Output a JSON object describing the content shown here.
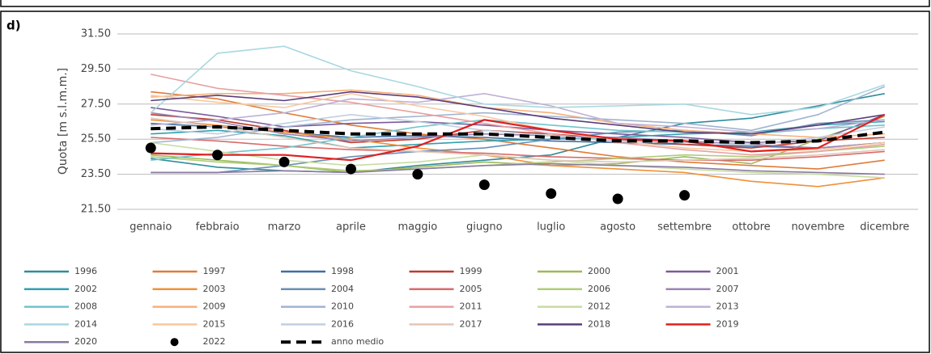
{
  "panel_label": "d)",
  "chart_data": {
    "type": "line",
    "ylabel": "Quota [m s.l.m.m.]",
    "categories": [
      "gennaio",
      "febbraio",
      "marzo",
      "aprile",
      "maggio",
      "giugno",
      "luglio",
      "agosto",
      "settembre",
      "ottobre",
      "novembre",
      "dicembre"
    ],
    "ylim": [
      21.5,
      31.5
    ],
    "yticks": [
      {
        "value": 21.5,
        "label": "21.50"
      },
      {
        "value": 23.5,
        "label": "23.50"
      },
      {
        "value": 25.5,
        "label": "25.50"
      },
      {
        "value": 27.5,
        "label": "27.50"
      },
      {
        "value": 29.5,
        "label": "29.50"
      },
      {
        "value": 31.5,
        "label": "31.50"
      }
    ],
    "grid": true,
    "series": [
      {
        "name": "1996",
        "color": "#2f8c9c",
        "style": "line",
        "values": [
          24.4,
          23.9,
          23.7,
          23.6,
          24.0,
          24.3,
          24.6,
          25.6,
          26.4,
          26.7,
          27.4,
          28.1
        ]
      },
      {
        "name": "1997",
        "color": "#e07b39",
        "style": "line",
        "values": [
          28.2,
          27.8,
          27.0,
          26.3,
          25.8,
          25.5,
          25.0,
          24.5,
          24.2,
          24.0,
          23.8,
          24.3
        ]
      },
      {
        "name": "1998",
        "color": "#3d6fa0",
        "style": "line",
        "values": [
          26.4,
          26.2,
          25.9,
          25.6,
          25.7,
          25.6,
          25.4,
          25.3,
          25.2,
          25.1,
          25.0,
          25.3
        ]
      },
      {
        "name": "1999",
        "color": "#c0392b",
        "style": "line",
        "values": [
          26.9,
          26.6,
          26.0,
          25.3,
          25.5,
          26.0,
          25.8,
          25.5,
          25.2,
          25.0,
          25.4,
          25.6
        ]
      },
      {
        "name": "2000",
        "color": "#9bbb59",
        "style": "line",
        "values": [
          24.6,
          24.3,
          24.0,
          23.6,
          23.9,
          24.2,
          24.0,
          24.1,
          24.5,
          24.1,
          25.5,
          26.8
        ]
      },
      {
        "name": "2001",
        "color": "#7b5a9a",
        "style": "line",
        "values": [
          27.3,
          26.8,
          26.2,
          26.4,
          26.5,
          26.3,
          26.0,
          25.8,
          25.6,
          25.3,
          25.4,
          26.9
        ]
      },
      {
        "name": "2002",
        "color": "#31a0b0",
        "style": "line",
        "values": [
          25.8,
          26.0,
          25.7,
          25.0,
          25.2,
          25.4,
          25.5,
          25.6,
          25.8,
          25.9,
          26.3,
          26.5
        ]
      },
      {
        "name": "2003",
        "color": "#f0903a",
        "style": "line",
        "values": [
          26.6,
          26.3,
          25.9,
          25.5,
          25.0,
          24.6,
          24.0,
          23.8,
          23.6,
          23.1,
          22.8,
          23.3
        ]
      },
      {
        "name": "2004",
        "color": "#6a8fb5",
        "style": "line",
        "values": [
          23.6,
          23.6,
          24.0,
          24.5,
          24.8,
          25.0,
          25.5,
          25.9,
          26.0,
          25.7,
          26.4,
          26.6
        ]
      },
      {
        "name": "2005",
        "color": "#d96b6b",
        "style": "line",
        "values": [
          25.6,
          25.4,
          25.1,
          24.9,
          24.8,
          24.7,
          24.5,
          24.4,
          24.3,
          24.3,
          24.5,
          24.8
        ]
      },
      {
        "name": "2006",
        "color": "#b0cc7a",
        "style": "line",
        "values": [
          24.5,
          24.2,
          24.0,
          23.7,
          23.8,
          24.0,
          24.2,
          24.4,
          24.6,
          24.5,
          24.8,
          25.1
        ]
      },
      {
        "name": "2007",
        "color": "#9b85b5",
        "style": "line",
        "values": [
          27.0,
          26.5,
          25.8,
          25.4,
          25.6,
          25.8,
          25.7,
          25.6,
          25.4,
          25.2,
          25.0,
          25.3
        ]
      },
      {
        "name": "2008",
        "color": "#6fc4cc",
        "style": "line",
        "values": [
          24.3,
          24.7,
          25.0,
          25.6,
          26.2,
          26.6,
          26.3,
          26.0,
          25.9,
          25.8,
          26.1,
          26.3
        ]
      },
      {
        "name": "2009",
        "color": "#f5b07a",
        "style": "line",
        "values": [
          27.9,
          28.1,
          28.1,
          28.3,
          28.0,
          27.3,
          27.0,
          26.4,
          26.0,
          25.8,
          25.6,
          25.8
        ]
      },
      {
        "name": "2010",
        "color": "#9fb4d0",
        "style": "line",
        "values": [
          25.3,
          25.6,
          26.2,
          26.6,
          26.8,
          27.0,
          26.8,
          26.6,
          26.4,
          26.0,
          26.9,
          28.5
        ]
      },
      {
        "name": "2011",
        "color": "#e8a0a0",
        "style": "line",
        "values": [
          29.2,
          28.4,
          28.0,
          27.6,
          27.0,
          26.4,
          25.8,
          25.3,
          24.9,
          24.6,
          24.8,
          25.2
        ]
      },
      {
        "name": "2012",
        "color": "#c8dca0",
        "style": "line",
        "values": [
          25.3,
          24.8,
          24.3,
          24.0,
          24.2,
          24.6,
          24.3,
          24.0,
          23.8,
          23.6,
          23.5,
          23.3
        ]
      },
      {
        "name": "2013",
        "color": "#bfb0d5",
        "style": "line",
        "values": [
          26.3,
          26.6,
          27.0,
          27.8,
          27.6,
          28.1,
          27.4,
          26.4,
          26.2,
          25.9,
          26.1,
          26.6
        ]
      },
      {
        "name": "2014",
        "color": "#a8d8e0",
        "style": "line",
        "values": [
          27.0,
          30.4,
          30.8,
          29.4,
          28.5,
          27.5,
          27.3,
          27.4,
          27.5,
          26.9,
          27.3,
          28.6
        ]
      },
      {
        "name": "2015",
        "color": "#f8c8a0",
        "style": "line",
        "values": [
          28.0,
          27.6,
          27.3,
          28.1,
          27.4,
          26.8,
          26.0,
          25.4,
          25.0,
          24.8,
          24.9,
          25.3
        ]
      },
      {
        "name": "2016",
        "color": "#c0cfe0",
        "style": "line",
        "values": [
          26.1,
          25.8,
          26.4,
          26.9,
          26.5,
          26.0,
          25.7,
          25.4,
          25.3,
          25.2,
          25.6,
          26.2
        ]
      },
      {
        "name": "2017",
        "color": "#e0c8b8",
        "style": "line",
        "values": [
          26.7,
          26.2,
          25.6,
          25.0,
          24.8,
          24.6,
          24.3,
          24.2,
          24.3,
          24.4,
          24.6,
          24.9
        ]
      },
      {
        "name": "2018",
        "color": "#5a3d7a",
        "style": "line",
        "values": [
          27.7,
          28.0,
          27.7,
          28.2,
          27.9,
          27.3,
          26.7,
          26.3,
          25.9,
          25.8,
          26.3,
          26.9
        ]
      },
      {
        "name": "2019",
        "color": "#e02020",
        "style": "line",
        "values": [
          24.7,
          24.6,
          24.6,
          24.3,
          25.1,
          26.6,
          26.0,
          25.5,
          25.4,
          24.8,
          25.0,
          26.9
        ]
      },
      {
        "name": "2020",
        "color": "#8a7aa0",
        "style": "line",
        "values": [
          23.6,
          23.6,
          23.7,
          23.6,
          23.8,
          24.0,
          24.1,
          24.0,
          23.9,
          23.7,
          23.6,
          23.5
        ]
      },
      {
        "name": "2022",
        "color": "#000000",
        "style": "dots",
        "values": [
          25.0,
          24.6,
          24.2,
          23.8,
          23.5,
          22.9,
          22.4,
          22.1,
          22.3,
          null,
          null,
          null
        ]
      },
      {
        "name": "anno medio",
        "color": "#000000",
        "style": "dashed",
        "values": [
          26.1,
          26.2,
          26.0,
          25.8,
          25.8,
          25.8,
          25.6,
          25.4,
          25.4,
          25.3,
          25.4,
          25.9
        ]
      }
    ]
  }
}
